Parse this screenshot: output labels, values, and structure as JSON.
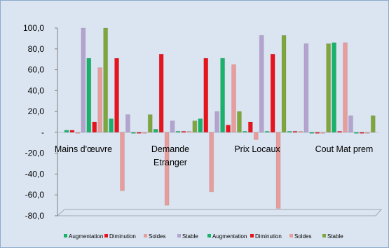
{
  "chart_data": {
    "type": "bar",
    "title": "",
    "xlabel": "",
    "ylabel": "",
    "ylim": [
      -80,
      100
    ],
    "y_ticks": [
      {
        "v": 100,
        "label": "100,0"
      },
      {
        "v": 80,
        "label": "80,0"
      },
      {
        "v": 60,
        "label": "60,0"
      },
      {
        "v": 40,
        "label": "40,0"
      },
      {
        "v": 20,
        "label": "20,0"
      },
      {
        "v": 0,
        "label": "-"
      },
      {
        "v": -20,
        "label": "-20,0"
      },
      {
        "v": -40,
        "label": "-40,0"
      },
      {
        "v": -60,
        "label": "-60,0"
      },
      {
        "v": -80,
        "label": "-80,0"
      }
    ],
    "grid": false,
    "legend_position": "bottom",
    "groups": [
      {
        "label_lines": [
          "Mains d'œuvre"
        ]
      },
      {
        "label_lines": [
          "Demande",
          "Etranger"
        ]
      },
      {
        "label_lines": [
          "Prix Locaux"
        ]
      },
      {
        "label_lines": [
          "Cout Mat prem"
        ]
      }
    ],
    "series": [
      {
        "name": "Augmentation",
        "color": "#19b26b",
        "values": [
          2,
          13,
          3,
          0
        ]
      },
      {
        "name": "Diminution",
        "color": "#e8141c",
        "values": [
          2,
          71,
          10,
          0
        ]
      },
      {
        "name": "Soldes",
        "color": "#e89c9c",
        "values": [
          0,
          -56,
          -7,
          0
        ]
      },
      {
        "name": "Stable",
        "color": "#b3a3cf",
        "values": [
          100,
          17,
          93,
          0
        ]
      },
      {
        "name": "Augmentation",
        "color": "#19b26b",
        "values": [
          71,
          3,
          71,
          86
        ]
      },
      {
        "name": "Diminution",
        "color": "#e8141c",
        "values": [
          10,
          75,
          7,
          0
        ]
      },
      {
        "name": "Soldes",
        "color": "#e89c9c",
        "values": [
          62,
          -70,
          65,
          86
        ]
      },
      {
        "name": "Stable",
        "color": "#7ea63d",
        "values": [
          100,
          17,
          20,
          16
        ]
      }
    ],
    "bars": [
      {
        "series": 0,
        "value": 2
      },
      {
        "series": 1,
        "value": 2
      },
      {
        "series": 2,
        "value": 0
      },
      {
        "series": 3,
        "value": 100
      },
      {
        "series": 4,
        "value": 71
      },
      {
        "series": 5,
        "value": 10
      },
      {
        "series": 6,
        "value": 62
      },
      {
        "series": 7,
        "value": 100
      },
      {
        "series": 4,
        "value": 13
      },
      {
        "series": 5,
        "value": 71
      },
      {
        "series": 6,
        "value": -56
      },
      {
        "series": 3,
        "value": 17
      },
      {
        "series": 4,
        "value": 0
      },
      {
        "series": 5,
        "value": 0
      },
      {
        "series": 6,
        "value": 0
      },
      {
        "series": 7,
        "value": 17
      },
      {
        "series": 4,
        "value": 3
      },
      {
        "series": 5,
        "value": 75
      },
      {
        "series": 6,
        "value": -70
      },
      {
        "series": 3,
        "value": 11
      },
      {
        "series": 4,
        "value": 1
      },
      {
        "series": 5,
        "value": 1
      },
      {
        "series": 6,
        "value": 1
      },
      {
        "series": 7,
        "value": 11
      },
      {
        "series": 4,
        "value": 13
      },
      {
        "series": 5,
        "value": 71
      },
      {
        "series": 6,
        "value": -57
      },
      {
        "series": 3,
        "value": 20
      },
      {
        "series": 4,
        "value": 71
      },
      {
        "series": 5,
        "value": 7
      },
      {
        "series": 6,
        "value": 65
      },
      {
        "series": 7,
        "value": 20
      },
      {
        "series": 4,
        "value": 1
      },
      {
        "series": 5,
        "value": 10
      },
      {
        "series": 6,
        "value": -7
      },
      {
        "series": 3,
        "value": 93
      },
      {
        "series": 4,
        "value": 1
      },
      {
        "series": 5,
        "value": 75
      },
      {
        "series": 6,
        "value": -73
      },
      {
        "series": 7,
        "value": 93
      },
      {
        "series": 4,
        "value": 1
      },
      {
        "series": 5,
        "value": 1
      },
      {
        "series": 6,
        "value": 1
      },
      {
        "series": 3,
        "value": 85
      },
      {
        "series": 4,
        "value": 0
      },
      {
        "series": 5,
        "value": 0
      },
      {
        "series": 6,
        "value": 0
      },
      {
        "series": 7,
        "value": 85
      },
      {
        "series": 4,
        "value": 86
      },
      {
        "series": 5,
        "value": 1
      },
      {
        "series": 6,
        "value": 86
      },
      {
        "series": 3,
        "value": 16
      },
      {
        "series": 4,
        "value": 0
      },
      {
        "series": 5,
        "value": 0
      },
      {
        "series": 6,
        "value": 0
      },
      {
        "series": 7,
        "value": 16
      }
    ]
  }
}
